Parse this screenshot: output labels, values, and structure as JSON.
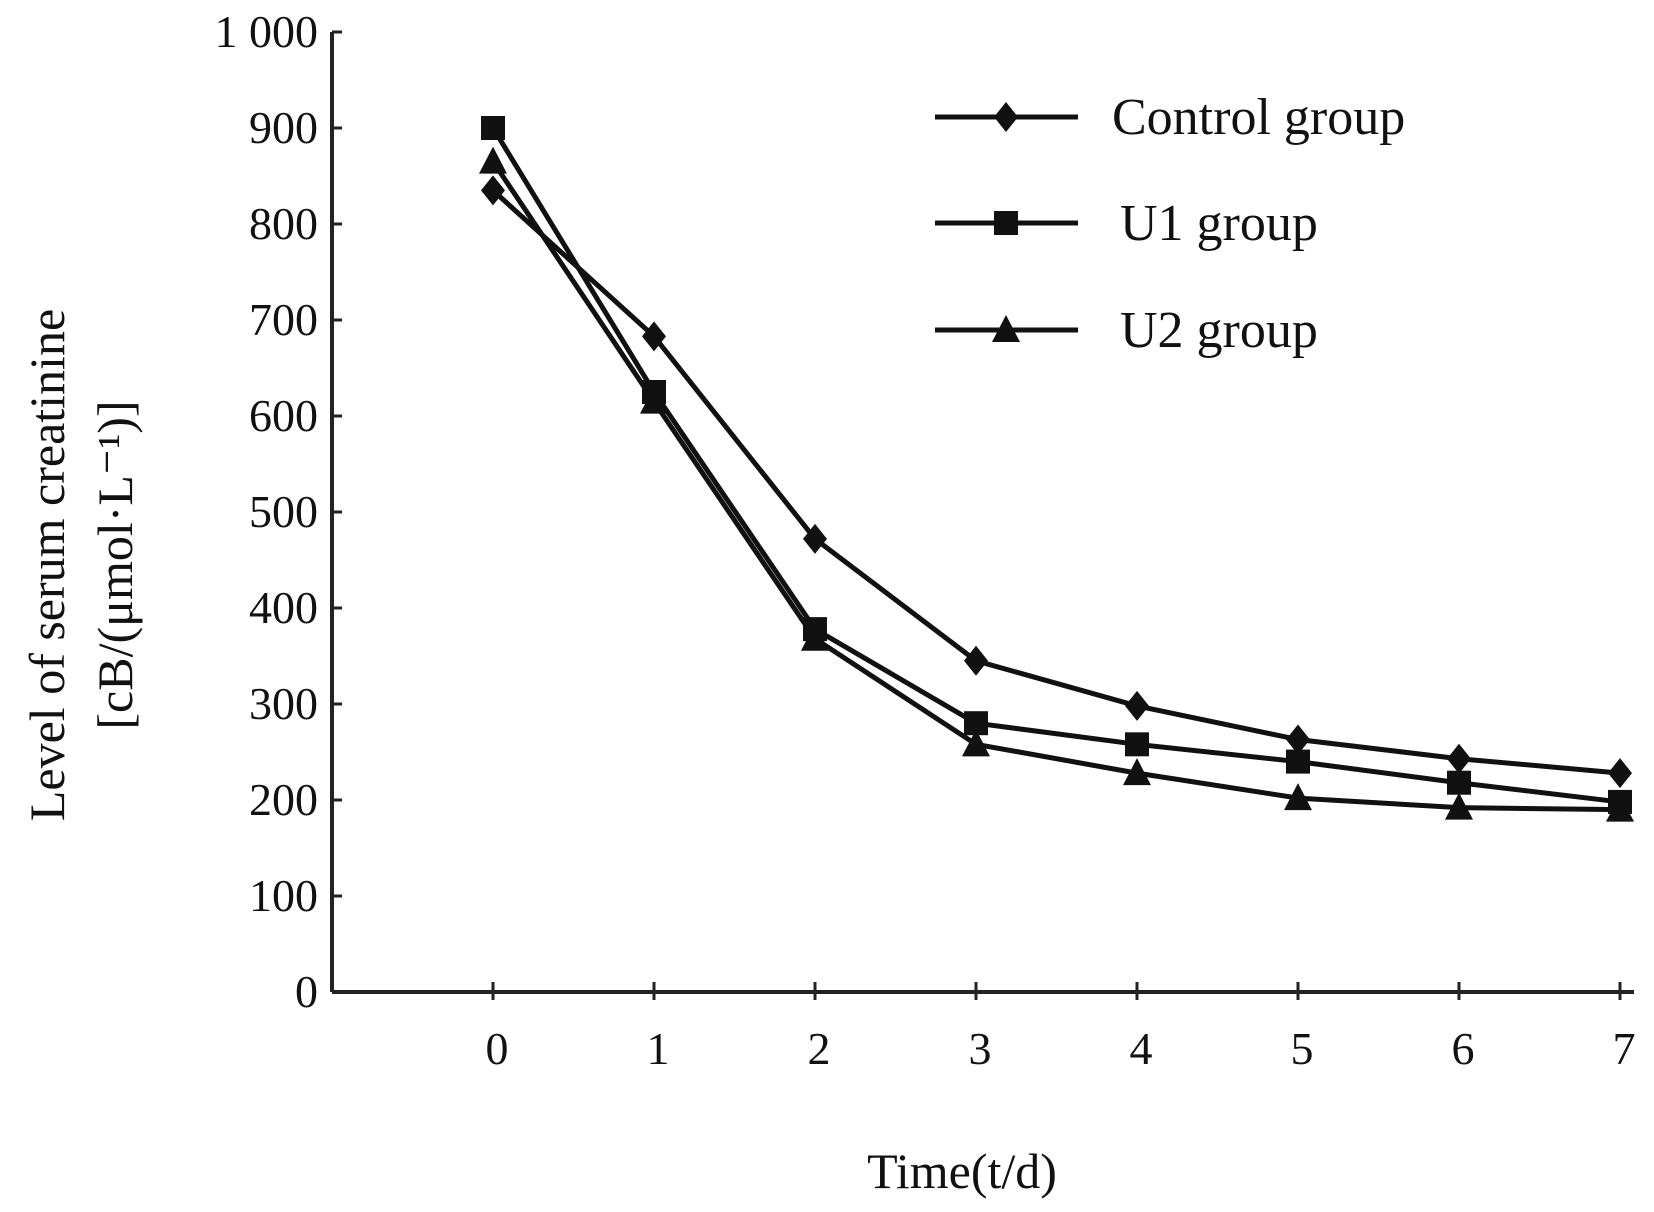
{
  "chart_data": {
    "type": "line",
    "title": "",
    "xlabel": "Time(t/d)",
    "ylabel_line1": "Level of serum creatinine",
    "ylabel_line2": "[cB/(μmol·L⁻¹)]",
    "xlim": [
      -1,
      7
    ],
    "ylim": [
      0,
      1000
    ],
    "x": [
      0,
      1,
      2,
      3,
      4,
      5,
      6,
      7
    ],
    "x_tick_labels": [
      "0",
      "1",
      "2",
      "3",
      "4",
      "5",
      "6",
      "7"
    ],
    "y_ticks": [
      0,
      100,
      200,
      300,
      400,
      500,
      600,
      700,
      800,
      900,
      1000
    ],
    "y_tick_labels": [
      "0",
      "100",
      "200",
      "300",
      "400",
      "500",
      "600",
      "700",
      "800",
      "900",
      "1 000"
    ],
    "grid": false,
    "legend_position": "top-right",
    "series": [
      {
        "name": "Control group",
        "marker": "diamond",
        "values": [
          835,
          683,
          472,
          345,
          298,
          263,
          243,
          228
        ]
      },
      {
        "name": "U1 group",
        "marker": "square",
        "values": [
          900,
          625,
          378,
          280,
          258,
          240,
          218,
          198
        ]
      },
      {
        "name": "U2 group",
        "marker": "triangle",
        "values": [
          865,
          615,
          368,
          258,
          228,
          202,
          192,
          190
        ]
      }
    ]
  }
}
